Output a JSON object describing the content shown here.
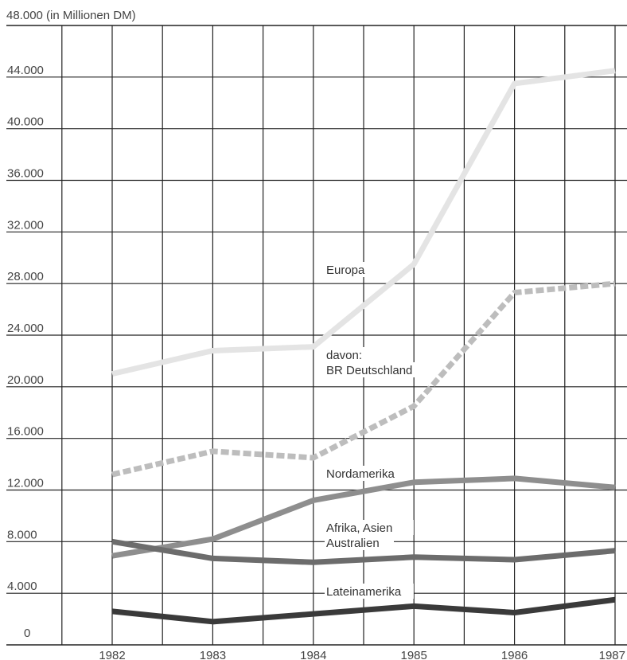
{
  "chart_data": {
    "type": "line",
    "title": "",
    "unit_label": "48.000 (in Millionen DM)",
    "xlabel": "",
    "ylabel": "",
    "grid": true,
    "ylim": [
      0,
      48000
    ],
    "y_ticks": [
      {
        "value": 4000,
        "label": "4.000"
      },
      {
        "value": 8000,
        "label": "8.000"
      },
      {
        "value": 12000,
        "label": "12.000"
      },
      {
        "value": 16000,
        "label": "16.000"
      },
      {
        "value": 20000,
        "label": "20.000"
      },
      {
        "value": 24000,
        "label": "24.000"
      },
      {
        "value": 28000,
        "label": "28.000"
      },
      {
        "value": 32000,
        "label": "32.000"
      },
      {
        "value": 36000,
        "label": "36.000"
      },
      {
        "value": 40000,
        "label": "40.000"
      },
      {
        "value": 44000,
        "label": "44.000"
      }
    ],
    "zero_label": "0",
    "x": [
      1982,
      1983,
      1984,
      1985,
      1986,
      1987
    ],
    "x_labels": [
      "1982",
      "1983",
      "1984",
      "1985",
      "1986",
      "1987"
    ],
    "series": [
      {
        "name": "Europa",
        "label_lines": [
          "Europa"
        ],
        "color": "#e4e4e4",
        "dashed": false,
        "values": [
          21000,
          22800,
          23100,
          29500,
          43500,
          44500
        ]
      },
      {
        "name": "davon: BR Deutschland",
        "label_lines": [
          "davon:",
          "BR Deutschland"
        ],
        "color": "#bdbdbd",
        "dashed": true,
        "values": [
          13200,
          15000,
          14500,
          18500,
          27300,
          28000
        ]
      },
      {
        "name": "Nordamerika",
        "label_lines": [
          "Nordamerika"
        ],
        "color": "#8e8e8e",
        "dashed": false,
        "values": [
          6900,
          8200,
          11200,
          12600,
          12900,
          12200
        ]
      },
      {
        "name": "Afrika, Asien Australien",
        "label_lines": [
          "Afrika, Asien",
          "Australien"
        ],
        "color": "#6c6c6c",
        "dashed": false,
        "values": [
          8000,
          6700,
          6400,
          6800,
          6600,
          7300
        ]
      },
      {
        "name": "Lateinamerika",
        "label_lines": [
          "Lateinamerika"
        ],
        "color": "#3a3a3a",
        "dashed": false,
        "values": [
          2600,
          1800,
          2400,
          3000,
          2500,
          3500
        ]
      }
    ]
  }
}
